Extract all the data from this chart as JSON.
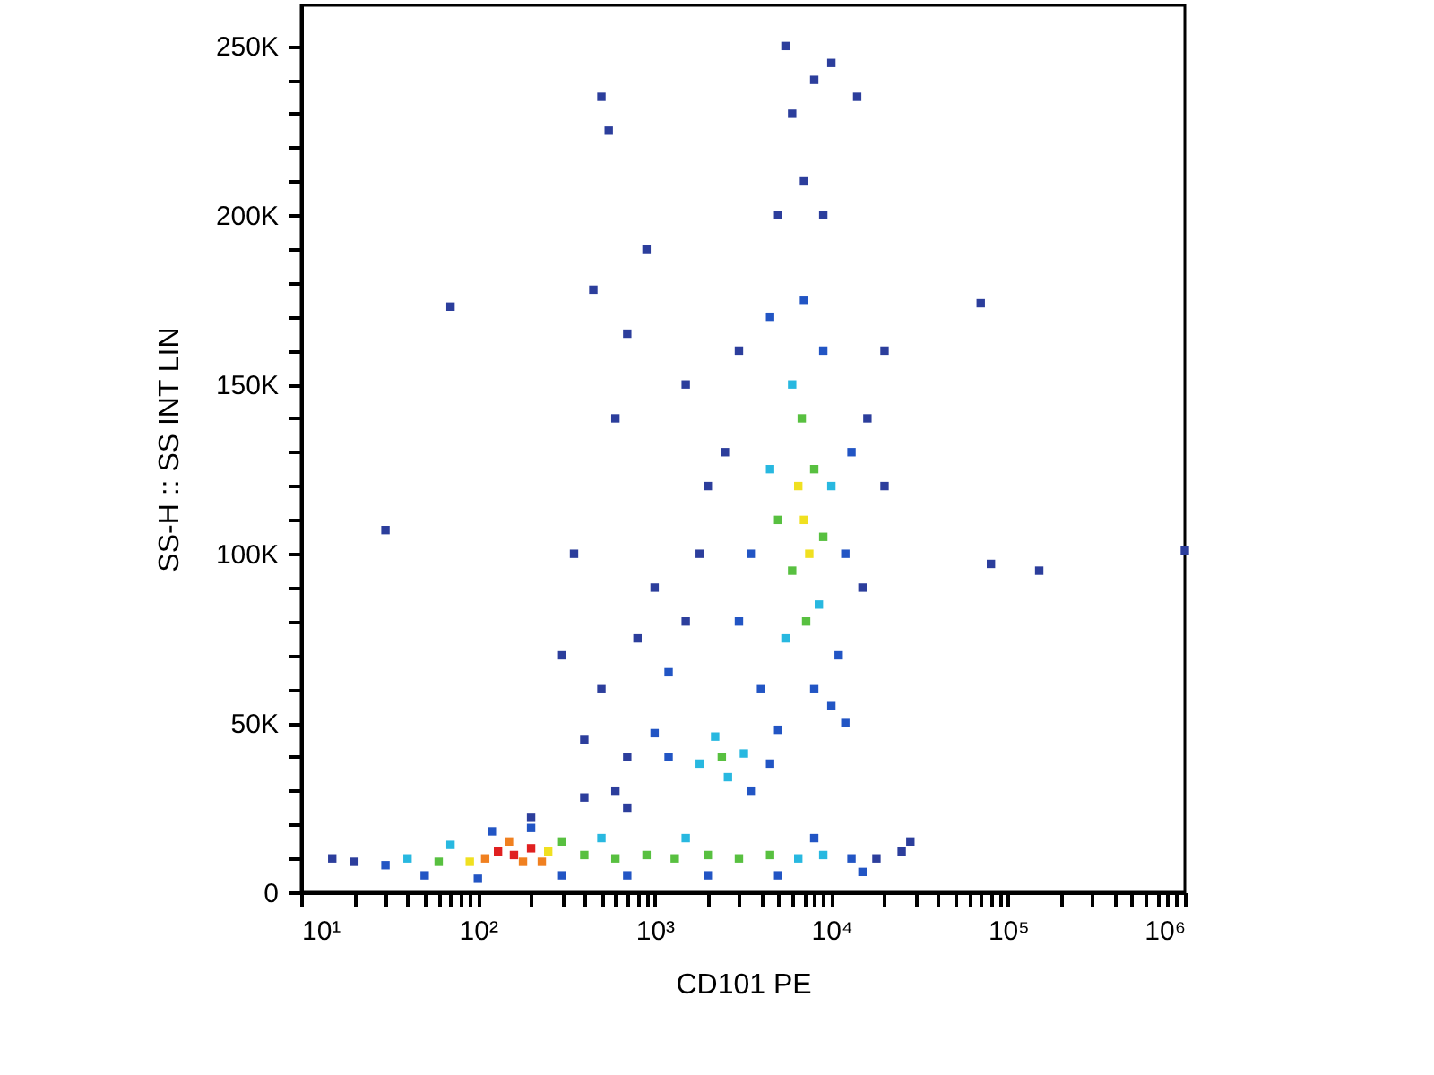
{
  "chart_data": {
    "type": "scatter",
    "xlabel": "CD101 PE",
    "ylabel": "SS-H :: SS INT LIN",
    "log": "x",
    "marker": "square",
    "grid": false,
    "xlim": [
      10,
      1000000
    ],
    "ylim": [
      0,
      262000
    ],
    "xticks": [
      {
        "value": 10,
        "label": "10¹"
      },
      {
        "value": 20,
        "label": null
      },
      {
        "value": 30,
        "label": null
      },
      {
        "value": 40,
        "label": null
      },
      {
        "value": 50,
        "label": null
      },
      {
        "value": 60,
        "label": null
      },
      {
        "value": 70,
        "label": null
      },
      {
        "value": 80,
        "label": null
      },
      {
        "value": 90,
        "label": null
      },
      {
        "value": 100,
        "label": "10²"
      },
      {
        "value": 200,
        "label": null
      },
      {
        "value": 300,
        "label": null
      },
      {
        "value": 400,
        "label": null
      },
      {
        "value": 500,
        "label": null
      },
      {
        "value": 600,
        "label": null
      },
      {
        "value": 700,
        "label": null
      },
      {
        "value": 800,
        "label": null
      },
      {
        "value": 900,
        "label": null
      },
      {
        "value": 1000,
        "label": "10³"
      },
      {
        "value": 2000,
        "label": null
      },
      {
        "value": 3000,
        "label": null
      },
      {
        "value": 4000,
        "label": null
      },
      {
        "value": 5000,
        "label": null
      },
      {
        "value": 6000,
        "label": null
      },
      {
        "value": 7000,
        "label": null
      },
      {
        "value": 8000,
        "label": null
      },
      {
        "value": 9000,
        "label": null
      },
      {
        "value": 10000,
        "label": "10⁴"
      },
      {
        "value": 20000,
        "label": null
      },
      {
        "value": 30000,
        "label": null
      },
      {
        "value": 40000,
        "label": null
      },
      {
        "value": 50000,
        "label": null
      },
      {
        "value": 60000,
        "label": null
      },
      {
        "value": 70000,
        "label": null
      },
      {
        "value": 80000,
        "label": null
      },
      {
        "value": 90000,
        "label": null
      },
      {
        "value": 100000,
        "label": "10⁵"
      },
      {
        "value": 200000,
        "label": null
      },
      {
        "value": 300000,
        "label": null
      },
      {
        "value": 400000,
        "label": null
      },
      {
        "value": 500000,
        "label": null
      },
      {
        "value": 600000,
        "label": null
      },
      {
        "value": 700000,
        "label": null
      },
      {
        "value": 800000,
        "label": null
      },
      {
        "value": 900000,
        "label": null
      },
      {
        "value": 1000000,
        "label": "10⁶"
      }
    ],
    "yticks": [
      0,
      {
        "value": 10000,
        "label": null
      },
      {
        "value": 20000,
        "label": null
      },
      {
        "value": 30000,
        "label": null
      },
      {
        "value": 40000,
        "label": null
      },
      {
        "value": 50000,
        "label": "50K"
      },
      {
        "value": 60000,
        "label": null
      },
      {
        "value": 70000,
        "label": null
      },
      {
        "value": 80000,
        "label": null
      },
      {
        "value": 90000,
        "label": null
      },
      {
        "value": 100000,
        "label": "100K"
      },
      {
        "value": 110000,
        "label": null
      },
      {
        "value": 120000,
        "label": null
      },
      {
        "value": 130000,
        "label": null
      },
      {
        "value": 140000,
        "label": null
      },
      {
        "value": 150000,
        "label": "150K"
      },
      {
        "value": 160000,
        "label": null
      },
      {
        "value": 170000,
        "label": null
      },
      {
        "value": 180000,
        "label": null
      },
      {
        "value": 190000,
        "label": null
      },
      {
        "value": 200000,
        "label": "200K"
      },
      {
        "value": 210000,
        "label": null
      },
      {
        "value": 220000,
        "label": null
      },
      {
        "value": 230000,
        "label": null
      },
      {
        "value": 240000,
        "label": null
      },
      {
        "value": 250000,
        "label": "250K"
      }
    ],
    "x": [
      130,
      160,
      200,
      180,
      110,
      250,
      90,
      150,
      230,
      60,
      70,
      300,
      40,
      30,
      20,
      15,
      50,
      100,
      300,
      120,
      200,
      400,
      600,
      900,
      1300,
      2000,
      3000,
      4500,
      6500,
      9000,
      13000,
      18000,
      25000,
      700,
      2000,
      5000,
      500,
      1500,
      8000,
      15000,
      28000,
      2400,
      1800,
      3200,
      2600,
      2200,
      1200,
      4500,
      1000,
      3500,
      5000,
      700,
      600,
      500,
      800,
      1000,
      400,
      700,
      1200,
      1500,
      1800,
      2000,
      350,
      300,
      600,
      1500,
      500,
      550,
      450,
      700,
      900,
      30,
      70,
      400,
      200,
      7000,
      6500,
      7500,
      6000,
      8000,
      5000,
      9000,
      6800,
      7200,
      4500,
      10000,
      6000,
      5500,
      8500,
      3500,
      3000,
      4000,
      12000,
      13000,
      9000,
      4500,
      7000,
      11000,
      12000,
      2500,
      3000,
      5000,
      7000,
      9000,
      6000,
      8000,
      5500,
      10000,
      14000,
      15000,
      16000,
      20000,
      20000,
      8000,
      10000,
      70000,
      80000,
      150000,
      1000000
    ],
    "values": [
      12000,
      11000,
      13000,
      9000,
      10000,
      12000,
      9000,
      15000,
      9000,
      9000,
      14000,
      15000,
      10000,
      8000,
      9000,
      10000,
      5000,
      4000,
      5000,
      18000,
      19000,
      11000,
      10000,
      11000,
      10000,
      11000,
      10000,
      11000,
      10000,
      11000,
      10000,
      10000,
      12000,
      5000,
      5000,
      5000,
      16000,
      16000,
      16000,
      6000,
      15000,
      40000,
      38000,
      41000,
      34000,
      46000,
      40000,
      38000,
      47000,
      30000,
      48000,
      40000,
      30000,
      60000,
      75000,
      90000,
      45000,
      25000,
      65000,
      80000,
      100000,
      120000,
      100000,
      70000,
      140000,
      150000,
      235000,
      225000,
      178000,
      165000,
      190000,
      107000,
      173000,
      28000,
      22000,
      110000,
      120000,
      100000,
      95000,
      125000,
      110000,
      105000,
      140000,
      80000,
      125000,
      120000,
      150000,
      75000,
      85000,
      100000,
      80000,
      60000,
      100000,
      130000,
      160000,
      170000,
      175000,
      70000,
      50000,
      130000,
      160000,
      200000,
      210000,
      200000,
      230000,
      240000,
      250000,
      245000,
      235000,
      90000,
      140000,
      120000,
      160000,
      60000,
      55000,
      174000,
      97000,
      95000,
      101000
    ],
    "colors": [
      "#e02020",
      "#e02020",
      "#e02020",
      "#f08020",
      "#f08020",
      "#f0e020",
      "#f0e020",
      "#f08020",
      "#f08020",
      "#58c040",
      "#28b8e0",
      "#58c040",
      "#28b8e0",
      "#2255c4",
      "#2c3e9c",
      "#2c3e9c",
      "#2255c4",
      "#2255c4",
      "#2255c4",
      "#2255c4",
      "#2255c4",
      "#58c040",
      "#58c040",
      "#58c040",
      "#58c040",
      "#58c040",
      "#58c040",
      "#58c040",
      "#28b8e0",
      "#28b8e0",
      "#2255c4",
      "#2c3e9c",
      "#2c3e9c",
      "#2255c4",
      "#2255c4",
      "#2255c4",
      "#28b8e0",
      "#28b8e0",
      "#2255c4",
      "#2255c4",
      "#2c3e9c",
      "#58c040",
      "#28b8e0",
      "#28b8e0",
      "#28b8e0",
      "#28b8e0",
      "#2255c4",
      "#2255c4",
      "#2255c4",
      "#2255c4",
      "#2255c4",
      "#2c3e9c",
      "#2c3e9c",
      "#2c3e9c",
      "#2c3e9c",
      "#2c3e9c",
      "#2c3e9c",
      "#2c3e9c",
      "#2255c4",
      "#2c3e9c",
      "#2c3e9c",
      "#2c3e9c",
      "#2c3e9c",
      "#2c3e9c",
      "#2c3e9c",
      "#2c3e9c",
      "#2c3e9c",
      "#2c3e9c",
      "#2c3e9c",
      "#2c3e9c",
      "#2c3e9c",
      "#2c3e9c",
      "#2c3e9c",
      "#2c3e9c",
      "#2c3e9c",
      "#f0e020",
      "#f0e020",
      "#f0e020",
      "#58c040",
      "#58c040",
      "#58c040",
      "#58c040",
      "#58c040",
      "#58c040",
      "#28b8e0",
      "#28b8e0",
      "#28b8e0",
      "#28b8e0",
      "#28b8e0",
      "#2255c4",
      "#2255c4",
      "#2255c4",
      "#2255c4",
      "#2255c4",
      "#2255c4",
      "#2255c4",
      "#2255c4",
      "#2255c4",
      "#2255c4",
      "#2c3e9c",
      "#2c3e9c",
      "#2c3e9c",
      "#2c3e9c",
      "#2c3e9c",
      "#2c3e9c",
      "#2c3e9c",
      "#2c3e9c",
      "#2c3e9c",
      "#2c3e9c",
      "#2c3e9c",
      "#2c3e9c",
      "#2c3e9c",
      "#2c3e9c",
      "#2255c4",
      "#2255c4",
      "#2c3e9c",
      "#2c3e9c",
      "#2c3e9c",
      "#2c3e9c"
    ]
  }
}
